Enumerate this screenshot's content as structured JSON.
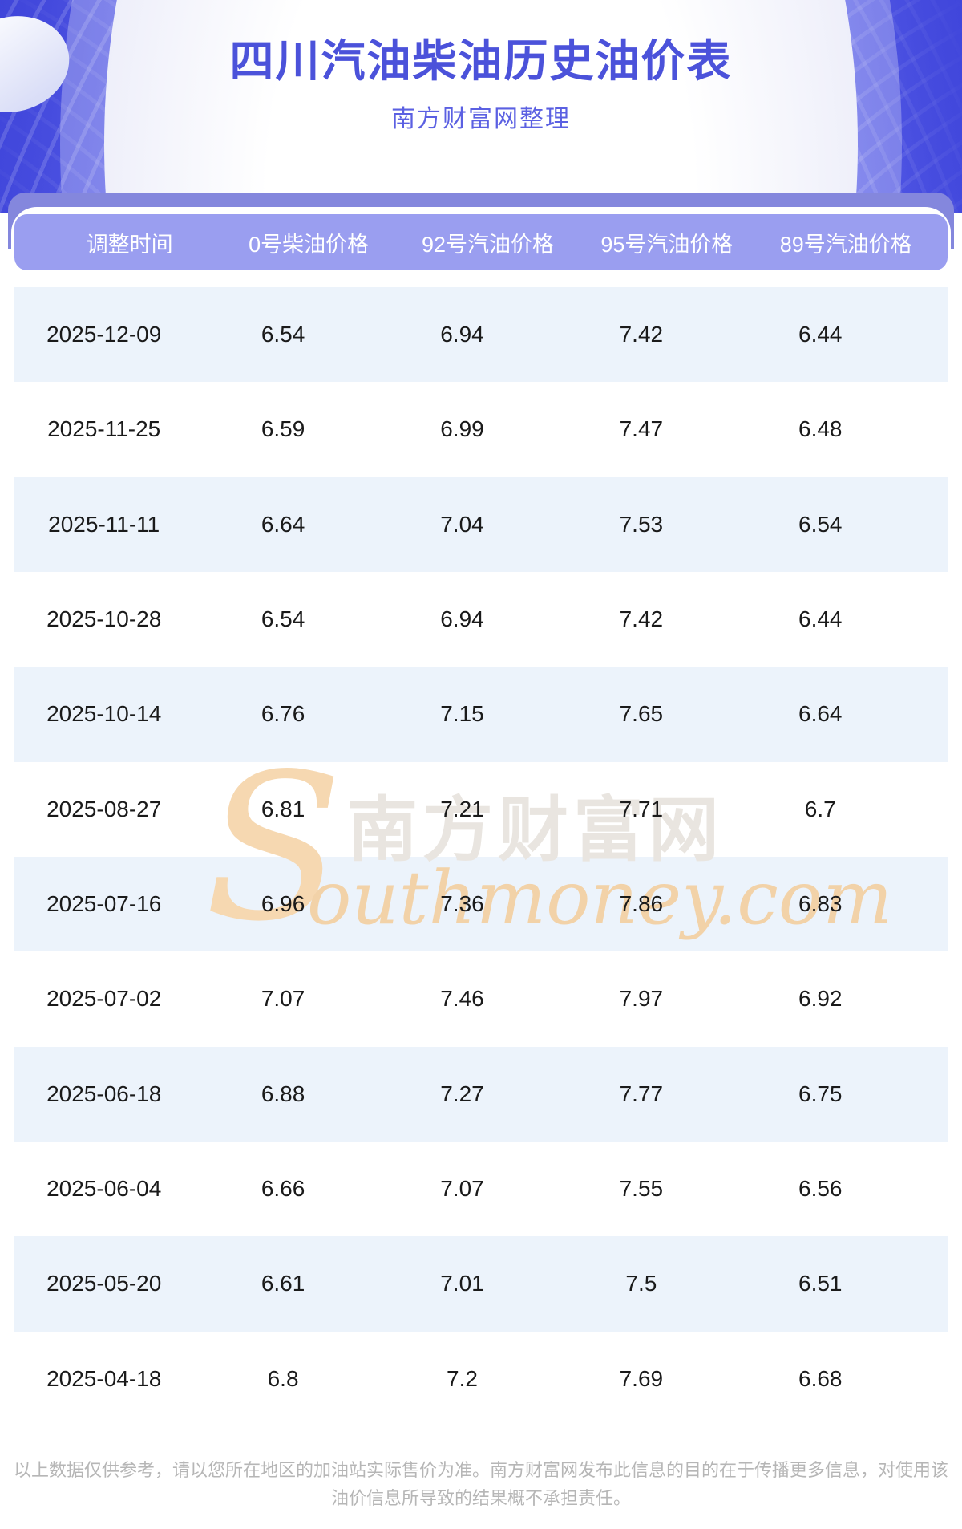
{
  "page": {
    "title": "四川汽油柴油历史油价表",
    "subtitle": "南方财富网整理"
  },
  "table": {
    "columns": [
      "调整时间",
      "0号柴油价格",
      "92号汽油价格",
      "95号汽油价格",
      "89号汽油价格"
    ],
    "rows": [
      [
        "2025-12-09",
        "6.54",
        "6.94",
        "7.42",
        "6.44"
      ],
      [
        "2025-11-25",
        "6.59",
        "6.99",
        "7.47",
        "6.48"
      ],
      [
        "2025-11-11",
        "6.64",
        "7.04",
        "7.53",
        "6.54"
      ],
      [
        "2025-10-28",
        "6.54",
        "6.94",
        "7.42",
        "6.44"
      ],
      [
        "2025-10-14",
        "6.76",
        "7.15",
        "7.65",
        "6.64"
      ],
      [
        "2025-08-27",
        "6.81",
        "7.21",
        "7.71",
        "6.7"
      ],
      [
        "2025-07-16",
        "6.96",
        "7.36",
        "7.86",
        "6.83"
      ],
      [
        "2025-07-02",
        "7.07",
        "7.46",
        "7.97",
        "6.92"
      ],
      [
        "2025-06-18",
        "6.88",
        "7.27",
        "7.77",
        "6.75"
      ],
      [
        "2025-06-04",
        "6.66",
        "7.07",
        "7.55",
        "6.56"
      ],
      [
        "2025-05-20",
        "6.61",
        "7.01",
        "7.5",
        "6.51"
      ],
      [
        "2025-04-18",
        "6.8",
        "7.2",
        "7.69",
        "6.68"
      ]
    ]
  },
  "watermark": {
    "initial": "S",
    "cn": "南方财富网",
    "en": "outhmoney.com"
  },
  "footer": {
    "disclaimer": "以上数据仅供参考，请以您所在地区的加油站实际售价为准。南方财富网发布此信息的目的在于传播更多信息，对使用该油价信息所导致的结果概不承担责任。"
  },
  "colors": {
    "hero_background": "#666cee",
    "title_text": "#4b52da",
    "subtitle_text": "#5b60e2",
    "backing_panel": "#8487dd",
    "header_band": "#9a9ef0",
    "row_alternate": "#ecf3fb",
    "data_text": "#1a1a1a",
    "footer_text": "#b6b6b6",
    "watermark_orange": "#f2d2a8",
    "watermark_gray": "#e9e5e0"
  }
}
